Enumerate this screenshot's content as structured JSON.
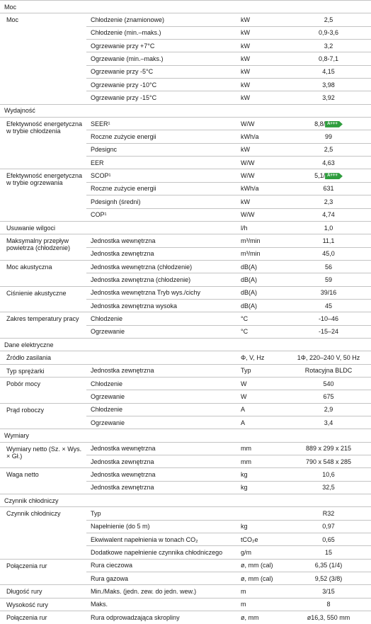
{
  "sections": [
    {
      "title": "Moc",
      "groups": [
        {
          "label": "Moc",
          "rows": [
            {
              "item": "Chłodzenie (znamionowe)",
              "unit": "kW",
              "value": "2,5"
            },
            {
              "item": "Chłodzenie (min.–maks.)",
              "unit": "kW",
              "value": "0,9-3,6"
            },
            {
              "item": "Ogrzewanie przy +7°C",
              "unit": "kW",
              "value": "3,2"
            },
            {
              "item": "Ogrzewanie (min.–maks.)",
              "unit": "kW",
              "value": "0,8-7,1"
            },
            {
              "item": "Ogrzewanie przy -5°C",
              "unit": "kW",
              "value": "4,15"
            },
            {
              "item": "Ogrzewanie przy -10°C",
              "unit": "kW",
              "value": "3,98"
            },
            {
              "item": "Ogrzewanie przy -15°C",
              "unit": "kW",
              "value": "3,92"
            }
          ]
        }
      ]
    },
    {
      "title": "Wydajność",
      "groups": [
        {
          "label": "Efektywność energetyczna w trybie chłodzenia",
          "rows": [
            {
              "item": "SEER¹",
              "unit": "W/W",
              "value": "8,8/",
              "badge": "A+++"
            },
            {
              "item": "Roczne zużycie energii",
              "unit": "kWh/a",
              "value": "99"
            },
            {
              "item": "Pdesignc",
              "unit": "kW",
              "value": "2,5"
            },
            {
              "item": "EER",
              "unit": "W/W",
              "value": "4,63"
            }
          ]
        },
        {
          "label": "Efektywność energetyczna w trybie ogrzewania",
          "rows": [
            {
              "item": "SCOP¹",
              "unit": "W/W",
              "value": "5,1/",
              "badge": "A+++"
            },
            {
              "item": "Roczne zużycie energii",
              "unit": "kWh/a",
              "value": "631"
            },
            {
              "item": "Pdesignh (średni)",
              "unit": "kW",
              "value": "2,3"
            },
            {
              "item": "COP¹",
              "unit": "W/W",
              "value": "4,74"
            }
          ]
        },
        {
          "label": "Usuwanie wilgoci",
          "rows": [
            {
              "unit": "l/h",
              "value": "1,0"
            }
          ]
        },
        {
          "label": "Maksymalny przepływ powietrza (chłodzenie)",
          "rows": [
            {
              "item": "Jednostka wewnętrzna",
              "unit": "m³/min",
              "value": "11,1"
            },
            {
              "item": "Jednostka zewnętrzna",
              "unit": "m³/min",
              "value": "45,0"
            }
          ]
        },
        {
          "label": "Moc akustyczna",
          "rows": [
            {
              "item": "Jednostka wewnętrzna (chłodzenie)",
              "unit": "dB(A)",
              "value": "56"
            },
            {
              "item": "Jednostka zewnętrzna (chłodzenie)",
              "unit": "dB(A)",
              "value": "59"
            }
          ]
        },
        {
          "label": "Ciśnienie akustyczne",
          "rows": [
            {
              "item": "Jednostka wewnętrzna Tryb wys./cichy",
              "unit": "dB(A)",
              "value": "39/16"
            },
            {
              "item": "Jednostka zewnętrzna wysoka",
              "unit": "dB(A)",
              "value": "45"
            }
          ]
        },
        {
          "label": "Zakres temperatury pracy",
          "rows": [
            {
              "item": "Chłodzenie",
              "unit": "°C",
              "value": "-10–46"
            },
            {
              "item": "Ogrzewanie",
              "unit": "°C",
              "value": "-15–24"
            }
          ]
        }
      ]
    },
    {
      "title": "Dane elektryczne",
      "groups": [
        {
          "label": "Źródło zasilania",
          "rows": [
            {
              "unit": "Φ, V, Hz",
              "value": "1Φ, 220–240 V, 50 Hz"
            }
          ]
        },
        {
          "label": "Typ sprężarki",
          "rows": [
            {
              "item": "Jednostka zewnętrzna",
              "unit": "Typ",
              "value": "Rotacyjna BLDC"
            }
          ]
        },
        {
          "label": "Pobór mocy",
          "rows": [
            {
              "item": "Chłodzenie",
              "unit": "W",
              "value": "540"
            },
            {
              "item": "Ogrzewanie",
              "unit": "W",
              "value": "675"
            }
          ]
        },
        {
          "label": "Prąd roboczy",
          "rows": [
            {
              "item": "Chłodzenie",
              "unit": "A",
              "value": "2,9"
            },
            {
              "item": "Ogrzewanie",
              "unit": "A",
              "value": "3,4"
            }
          ]
        }
      ]
    },
    {
      "title": "Wymiary",
      "groups": [
        {
          "label": "Wymiary netto (Sz. × Wys. × Gł.)",
          "rows": [
            {
              "item": "Jednostka wewnętrzna",
              "unit": "mm",
              "value": "889 x 299 x 215"
            },
            {
              "item": "Jednostka zewnętrzna",
              "unit": "mm",
              "value": "790 x 548 x 285"
            }
          ]
        },
        {
          "label": "Waga netto",
          "rows": [
            {
              "item": "Jednostka wewnętrzna",
              "unit": "kg",
              "value": "10,6"
            },
            {
              "item": "Jednostka zewnętrzna",
              "unit": "kg",
              "value": "32,5"
            }
          ]
        }
      ]
    },
    {
      "title": "Czynnik chłodniczy",
      "groups": [
        {
          "label": "Czynnik chłodniczy",
          "rows": [
            {
              "item": "Typ",
              "value": "R32"
            },
            {
              "item": "Napełnienie (do 5 m)",
              "unit": "kg",
              "value": "0,97"
            },
            {
              "item": "Ekwiwalent napełnienia w tonach CO₂",
              "unit": "tCO₂e",
              "value": "0,65"
            },
            {
              "item": "Dodatkowe napełnienie czynnika chłodniczego",
              "unit": "g/m",
              "value": "15"
            }
          ]
        },
        {
          "label": "Połączenia rur",
          "rows": [
            {
              "item": "Rura cieczowa",
              "unit": "ø, mm (cal)",
              "value": "6,35 (1/4)"
            },
            {
              "item": "Rura gazowa",
              "unit": "ø, mm (cal)",
              "value": "9,52 (3/8)"
            }
          ]
        },
        {
          "label": "Długość rury",
          "rows": [
            {
              "item": "Min./Maks. (jedn. zew. do jedn. wew.)",
              "unit": "m",
              "value": "3/15"
            }
          ]
        },
        {
          "label": "Wysokość rury",
          "rows": [
            {
              "item": "Maks.",
              "unit": "m",
              "value": "8"
            }
          ]
        },
        {
          "label": "Połączenia rur",
          "rows": [
            {
              "item": "Rura odprowadzająca skropliny",
              "unit": "ø, mm",
              "value": "ø16,3, 550 mm"
            }
          ]
        }
      ]
    }
  ]
}
